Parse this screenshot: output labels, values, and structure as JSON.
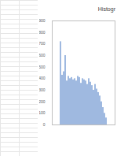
{
  "chart_data": {
    "type": "bar",
    "title": "Histogr",
    "categories": [
      null,
      null,
      null,
      null,
      null,
      null,
      null,
      null,
      null,
      null,
      null,
      null,
      null,
      null,
      null,
      null,
      null,
      null,
      null,
      null,
      null,
      null,
      null,
      null,
      null,
      null,
      null,
      null,
      null,
      null
    ],
    "values": [
      720,
      430,
      460,
      600,
      380,
      420,
      400,
      410,
      390,
      400,
      380,
      420,
      410,
      360,
      400,
      390,
      380,
      350,
      400,
      370,
      340,
      300,
      350,
      310,
      280,
      250,
      200,
      150,
      100,
      60
    ],
    "color": "#9fb9e0",
    "ylim": [
      0,
      900
    ],
    "yticks": [
      0,
      100,
      200,
      300,
      400,
      500,
      600,
      700,
      800,
      900
    ],
    "grid": false,
    "tick_labels": "y"
  }
}
